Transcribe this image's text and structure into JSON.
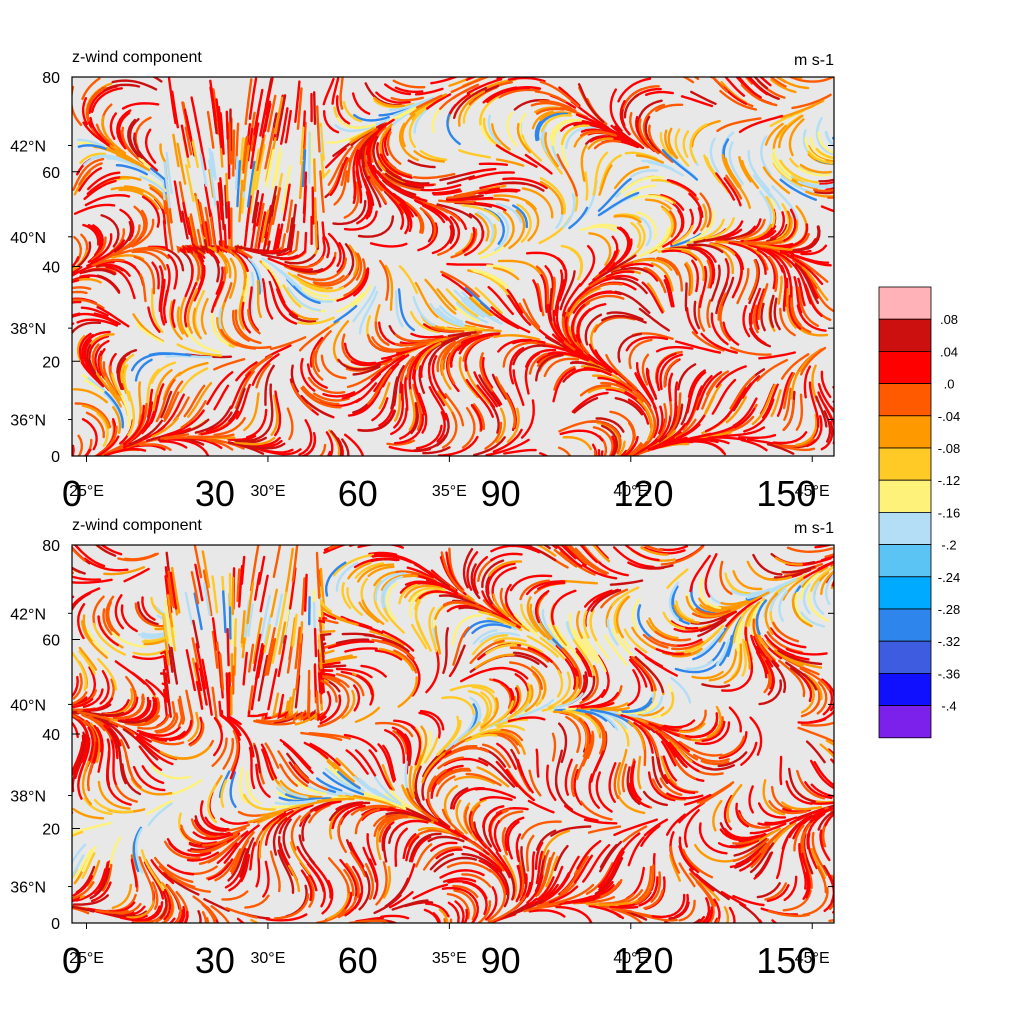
{
  "chart_data": [
    {
      "type": "heatmap",
      "panel": "top",
      "title": "z-wind component",
      "units": "m s-1",
      "left_axis_labels": [
        "80",
        "60",
        "40",
        "20",
        "0"
      ],
      "lat_labels": [
        "42°N",
        "40°N",
        "38°N",
        "36°N"
      ],
      "lon_labels": [
        "25°E",
        "30°E",
        "35°E",
        "40°E",
        "45°E"
      ],
      "bottom_axis_labels": [
        "0",
        "30",
        "60",
        "90",
        "120",
        "150"
      ],
      "left_axis_range": [
        0,
        80
      ],
      "bottom_axis_range": [
        0,
        160
      ],
      "lat_range": [
        35.2,
        43.5
      ],
      "lon_range": [
        24.6,
        45.6
      ]
    },
    {
      "type": "heatmap",
      "panel": "bottom",
      "title": "z-wind component",
      "units": "m s-1",
      "left_axis_labels": [
        "80",
        "60",
        "40",
        "20",
        "0"
      ],
      "lat_labels": [
        "42°N",
        "40°N",
        "38°N",
        "36°N"
      ],
      "lon_labels": [
        "25°E",
        "30°E",
        "35°E",
        "40°E",
        "45°E"
      ],
      "bottom_axis_labels": [
        "0",
        "30",
        "60",
        "90",
        "120",
        "150"
      ],
      "left_axis_range": [
        0,
        80
      ],
      "bottom_axis_range": [
        0,
        160
      ],
      "lat_range": [
        35.2,
        43.5
      ],
      "lon_range": [
        24.6,
        45.6
      ]
    }
  ],
  "colorbar": {
    "labels": [
      ".08",
      ".04",
      ".0",
      "-.04",
      "-.08",
      "-.12",
      "-.16",
      "-.2",
      "-.24",
      "-.28",
      "-.32",
      "-.36",
      "-.4"
    ],
    "colors": [
      "#ffb3b8",
      "#cc1010",
      "#ff0000",
      "#ff5a00",
      "#ff9900",
      "#ffc926",
      "#fff27a",
      "#b3def5",
      "#5cc4f5",
      "#00aaff",
      "#2e86ec",
      "#3d5ce0",
      "#1010ff",
      "#7c20ec"
    ]
  },
  "palette": {
    "background": "#e8e8e8",
    "streamline_colors": [
      "#ff0000",
      "#ff5a00",
      "#ff9900",
      "#ffc926",
      "#fff27a",
      "#b3def5",
      "#2e86ec",
      "#cc1010"
    ]
  }
}
